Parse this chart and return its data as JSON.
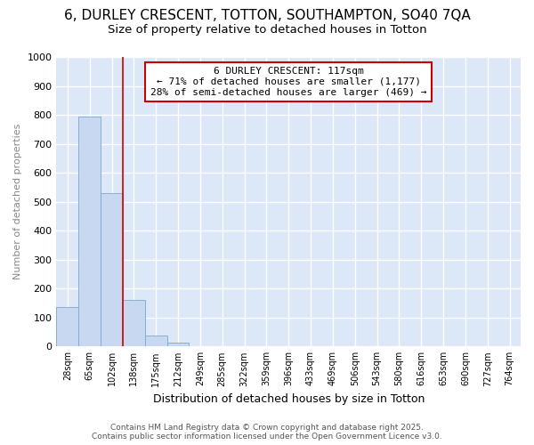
{
  "title_line1": "6, DURLEY CRESCENT, TOTTON, SOUTHAMPTON, SO40 7QA",
  "title_line2": "Size of property relative to detached houses in Totton",
  "xlabel": "Distribution of detached houses by size in Totton",
  "ylabel": "Number of detached properties",
  "bar_color": "#c8d8f0",
  "bar_edge_color": "#7aaad0",
  "categories": [
    "28sqm",
    "65sqm",
    "102sqm",
    "138sqm",
    "175sqm",
    "212sqm",
    "249sqm",
    "285sqm",
    "322sqm",
    "359sqm",
    "396sqm",
    "433sqm",
    "469sqm",
    "506sqm",
    "543sqm",
    "580sqm",
    "616sqm",
    "653sqm",
    "690sqm",
    "727sqm",
    "764sqm"
  ],
  "values": [
    135,
    795,
    530,
    162,
    38,
    12,
    0,
    0,
    0,
    0,
    0,
    0,
    0,
    0,
    0,
    0,
    0,
    0,
    0,
    0,
    0
  ],
  "vline_x": 2.5,
  "vline_color": "#cc0000",
  "annotation_text": "6 DURLEY CRESCENT: 117sqm\n← 71% of detached houses are smaller (1,177)\n28% of semi-detached houses are larger (469) →",
  "annotation_box_color": "#ffffff",
  "annotation_border_color": "#cc0000",
  "ylim": [
    0,
    1000
  ],
  "yticks": [
    0,
    100,
    200,
    300,
    400,
    500,
    600,
    700,
    800,
    900,
    1000
  ],
  "fig_bg_color": "#ffffff",
  "plot_bg_color": "#dce8f8",
  "grid_color": "#ffffff",
  "footer_line1": "Contains HM Land Registry data © Crown copyright and database right 2025.",
  "footer_line2": "Contains public sector information licensed under the Open Government Licence v3.0."
}
